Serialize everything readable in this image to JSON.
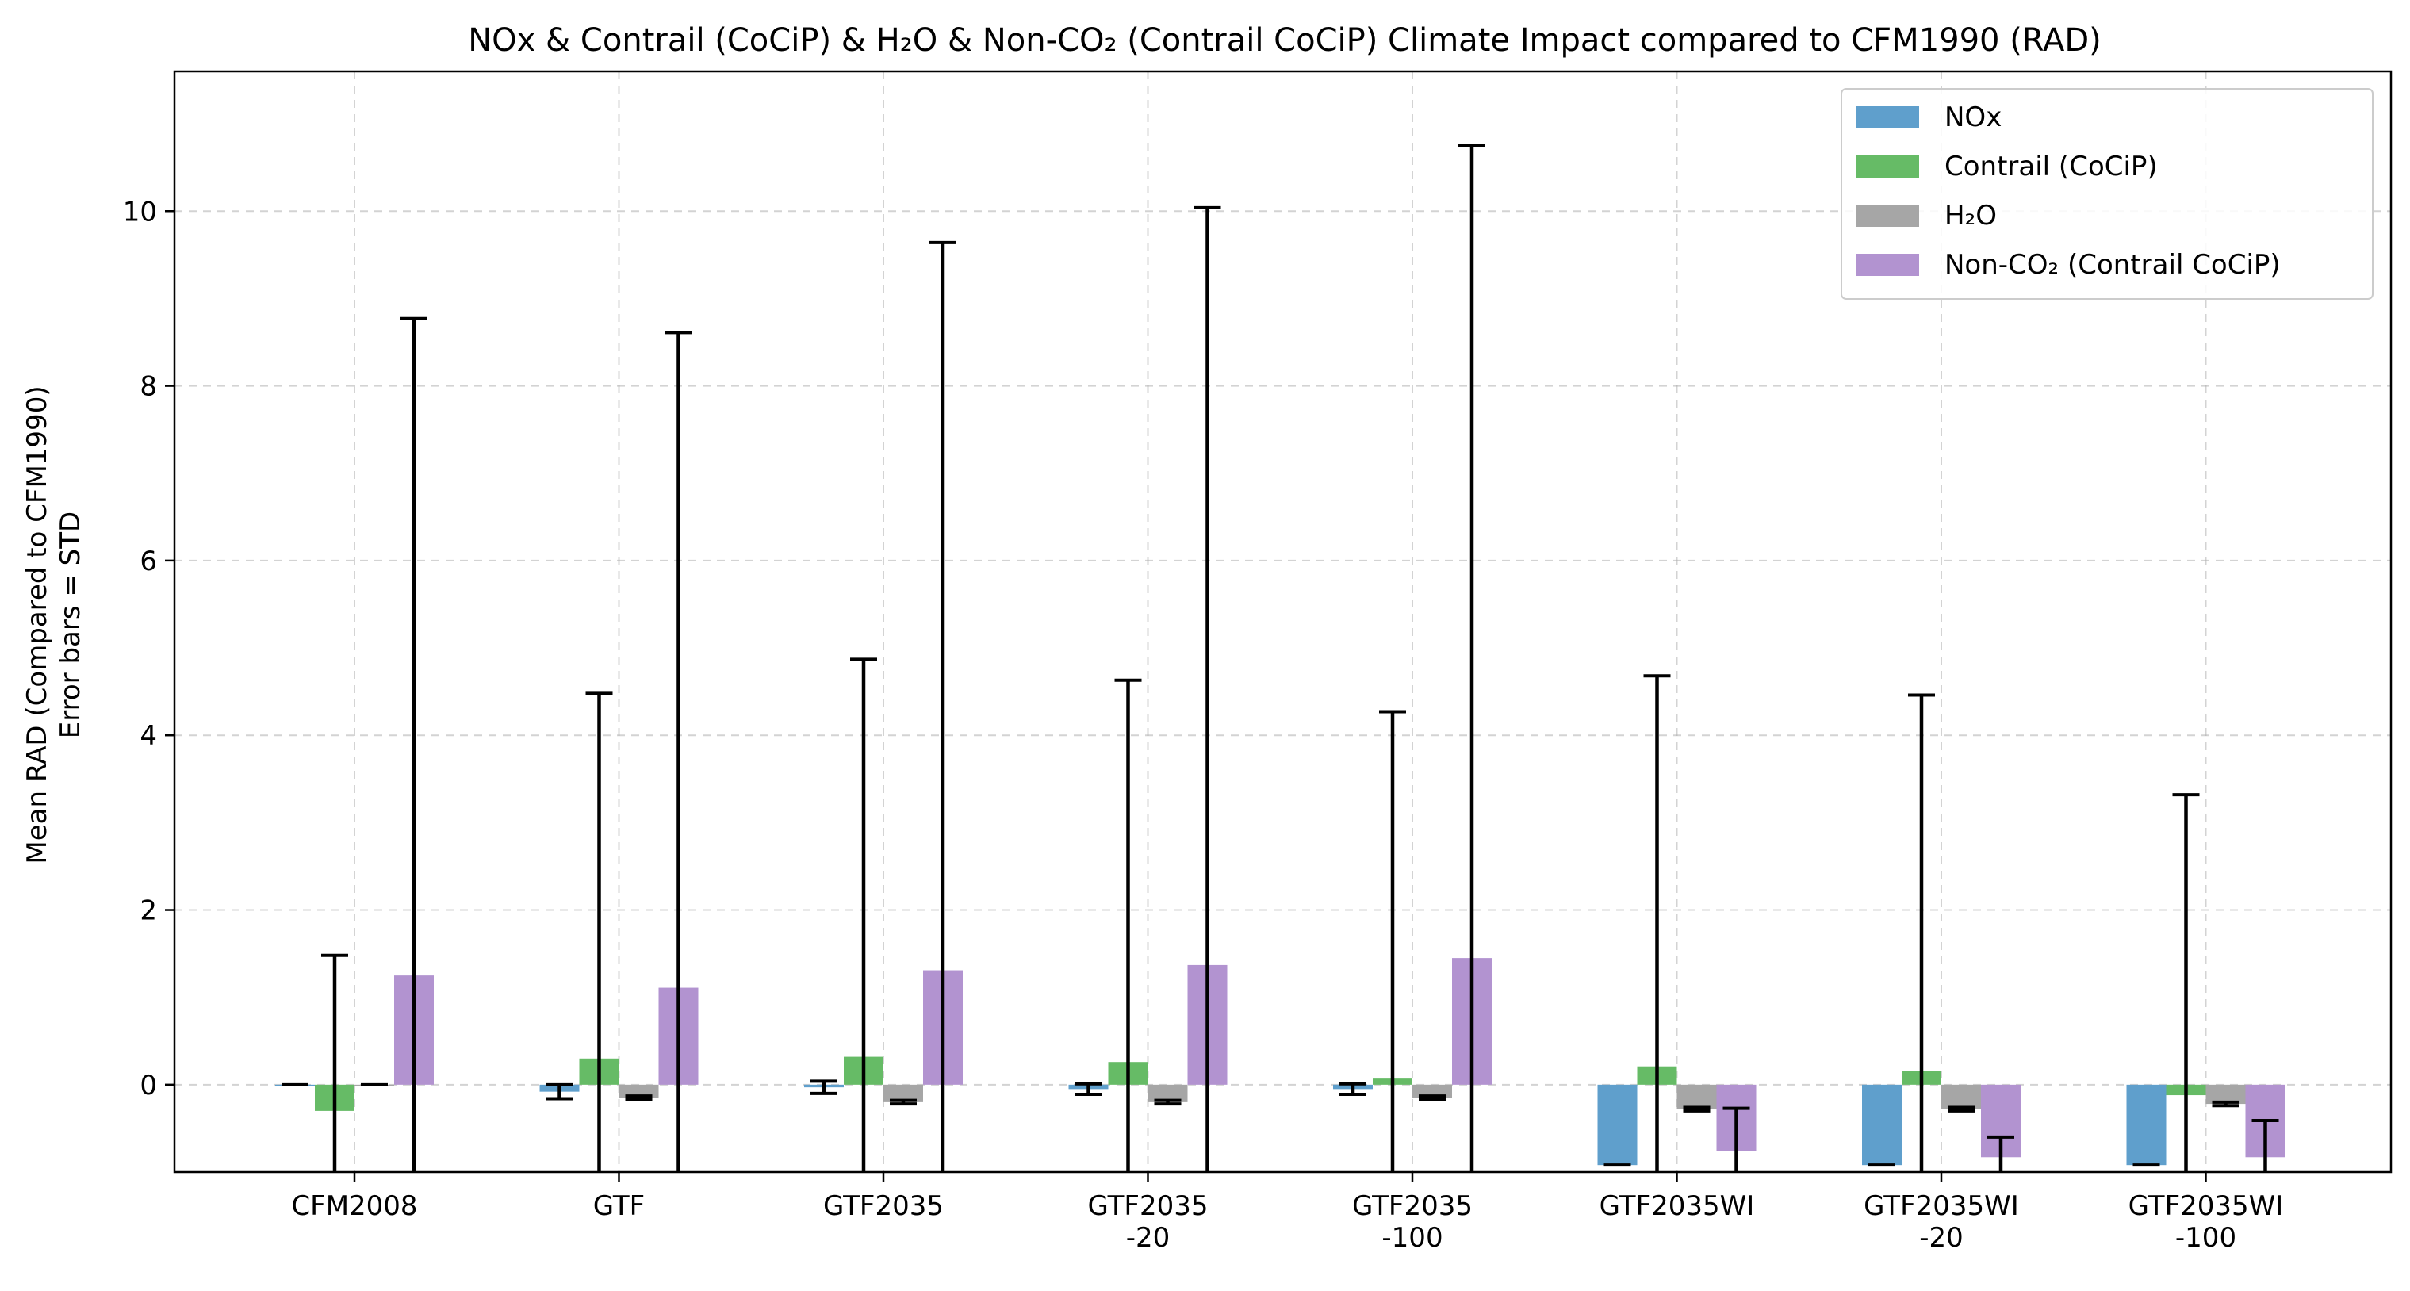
{
  "chart_data": {
    "type": "bar",
    "title": "NOx & Contrail (CoCiP) & H₂O & Non-CO₂ (Contrail CoCiP) Climate Impact compared to CFM1990 (RAD)",
    "ylabel_lines": [
      "Mean RAD (Compared to CFM1990)",
      "Error bars = STD"
    ],
    "xlabel": "",
    "ylim": [
      -1.0,
      11.6
    ],
    "yticks": [
      0,
      2,
      4,
      6,
      8,
      10
    ],
    "grid": true,
    "legend_position": "top-right",
    "categories": [
      [
        "CFM2008"
      ],
      [
        "GTF"
      ],
      [
        "GTF2035"
      ],
      [
        "GTF2035",
        "-20"
      ],
      [
        "GTF2035",
        "-100"
      ],
      [
        "GTF2035WI"
      ],
      [
        "GTF2035WI",
        "-20"
      ],
      [
        "GTF2035WI",
        "-100"
      ]
    ],
    "series": [
      {
        "name": "NOx",
        "color": "#5f9fcc",
        "values": [
          0.0,
          -0.08,
          -0.03,
          -0.05,
          -0.05,
          -0.92,
          -0.92,
          -0.92
        ],
        "errors": [
          0.0,
          0.08,
          0.07,
          0.06,
          0.06,
          0.0,
          0.0,
          0.0
        ]
      },
      {
        "name": "Contrail (CoCiP)",
        "color": "#66bb66",
        "values": [
          -0.3,
          0.3,
          0.32,
          0.26,
          0.07,
          0.21,
          0.16,
          -0.12
        ],
        "errors": [
          1.78,
          4.18,
          4.55,
          4.37,
          4.2,
          4.47,
          4.3,
          3.44
        ]
      },
      {
        "name": "H₂O",
        "color": "#a6a6a6",
        "values": [
          0.0,
          -0.15,
          -0.2,
          -0.2,
          -0.15,
          -0.28,
          -0.28,
          -0.22
        ],
        "errors": [
          0.0,
          0.02,
          0.02,
          0.02,
          0.02,
          0.02,
          0.02,
          0.02
        ]
      },
      {
        "name": "Non-CO₂ (Contrail CoCiP)",
        "color": "#b293d0",
        "values": [
          1.25,
          1.11,
          1.31,
          1.37,
          1.45,
          -0.76,
          -0.83,
          -0.83
        ],
        "errors": [
          7.52,
          7.5,
          8.33,
          8.67,
          9.3,
          0.49,
          0.23,
          0.42
        ]
      }
    ]
  }
}
